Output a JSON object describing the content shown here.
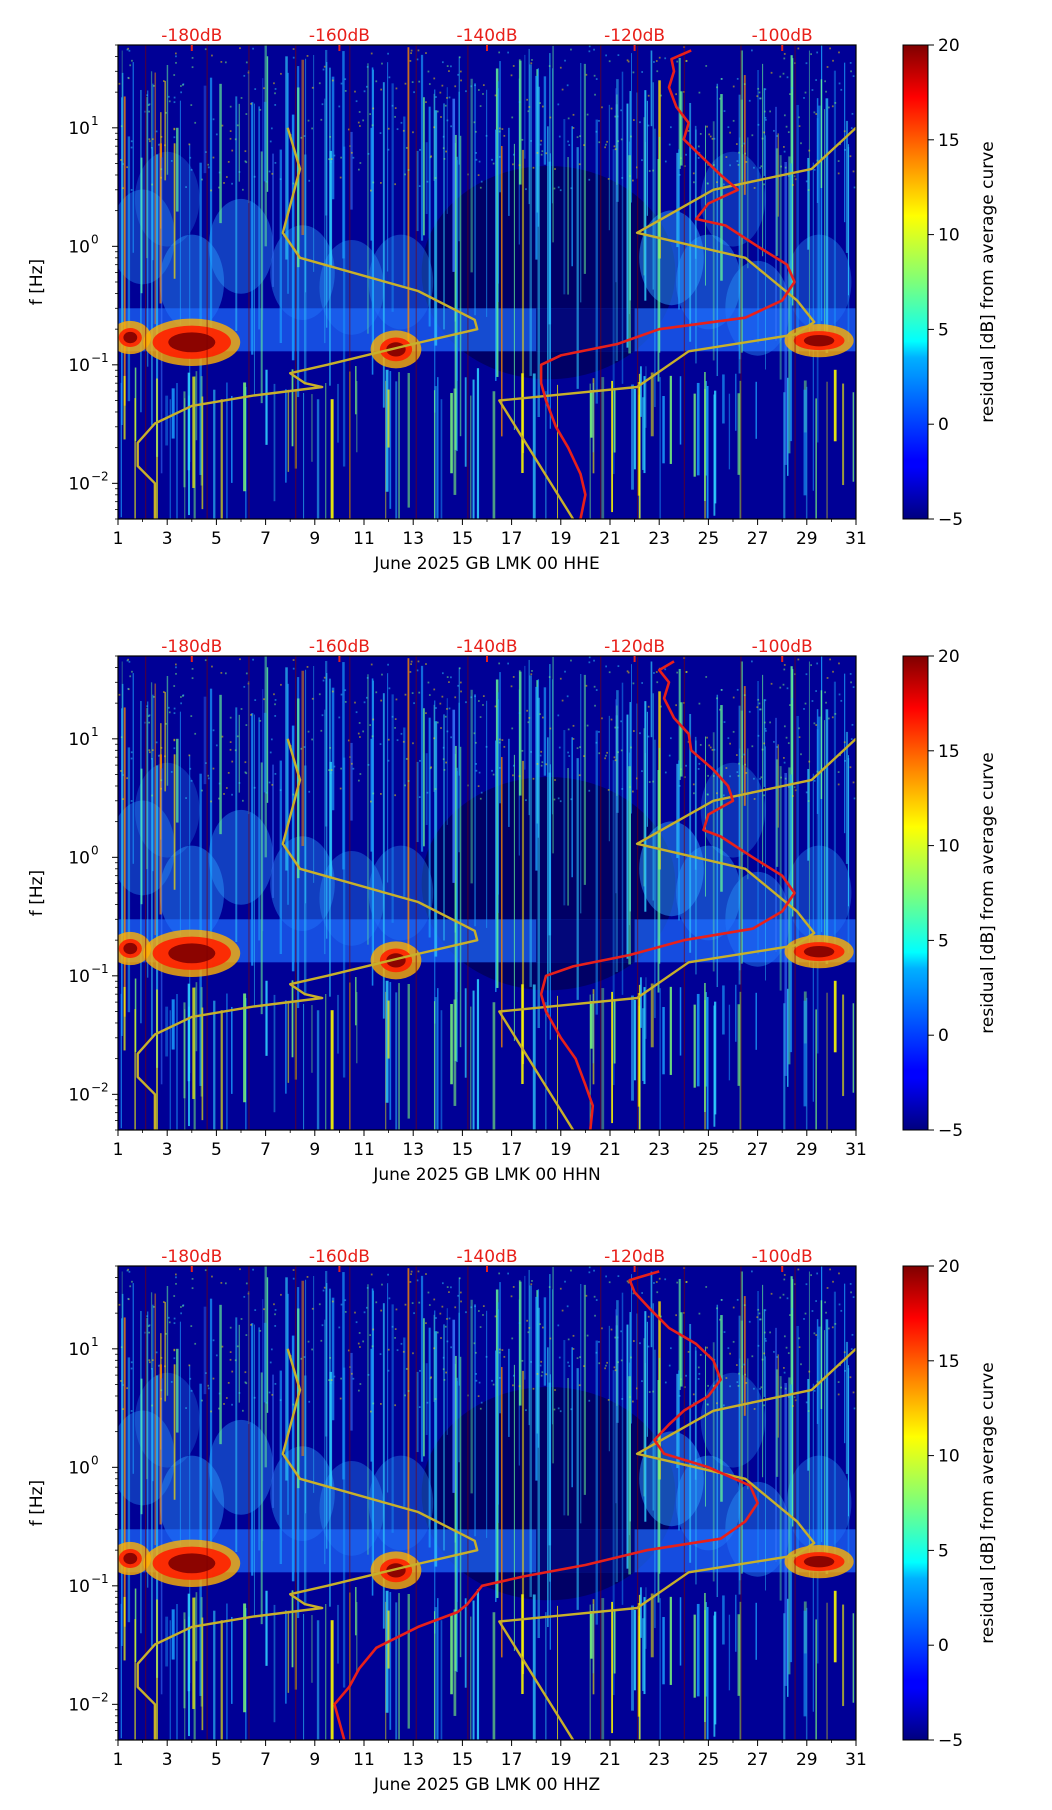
{
  "chart_data": [
    {
      "type": "heatmap",
      "xlabel": "June 2025 GB LMK 00 HHE",
      "ylabel": "f [Hz]",
      "x_ticks": [
        "1",
        "3",
        "5",
        "7",
        "9",
        "11",
        "13",
        "15",
        "17",
        "19",
        "21",
        "23",
        "25",
        "27",
        "29",
        "31"
      ],
      "x_tick_values": [
        1,
        3,
        5,
        7,
        9,
        11,
        13,
        15,
        17,
        19,
        21,
        23,
        25,
        27,
        29,
        31
      ],
      "y_ticks": [
        {
          "label": "10",
          "exp": "1",
          "value": 10
        },
        {
          "label": "10",
          "exp": "0",
          "value": 1
        },
        {
          "label": "10",
          "exp": "−1",
          "value": 0.1
        },
        {
          "label": "10",
          "exp": "−2",
          "value": 0.01
        }
      ],
      "xlim": [
        1,
        31
      ],
      "ylim": [
        0.005,
        50
      ],
      "y_scale": "log",
      "top_axis_labels": [
        "-180dB",
        "-160dB",
        "-140dB",
        "-120dB",
        "-100dB"
      ],
      "top_axis_positions": [
        4,
        10,
        16,
        22,
        28
      ],
      "colorbar": {
        "label": "residual [dB] from average curve",
        "ticks": [
          "20",
          "15",
          "10",
          "5",
          "0",
          "−5"
        ],
        "tick_values": [
          20,
          15,
          10,
          5,
          0,
          -5
        ],
        "range": [
          -5,
          20
        ]
      },
      "series": [
        {
          "color": "#c8b02a",
          "points": [
            [
              7.9,
              10
            ],
            [
              8.4,
              4.5
            ],
            [
              7.7,
              1.3
            ],
            [
              8.4,
              0.8
            ],
            [
              13.2,
              0.42
            ],
            [
              15.5,
              0.24
            ],
            [
              15.6,
              0.2
            ],
            [
              13,
              0.15
            ],
            [
              9.5,
              0.1
            ],
            [
              8.0,
              0.085
            ],
            [
              8.6,
              0.07
            ],
            [
              9.3,
              0.065
            ],
            [
              6.5,
              0.055
            ],
            [
              4.0,
              0.045
            ],
            [
              2.5,
              0.032
            ],
            [
              1.8,
              0.022
            ],
            [
              1.8,
              0.014
            ],
            [
              2.5,
              0.01
            ],
            [
              2.5,
              0.005
            ]
          ]
        },
        {
          "color": "#c8b02a",
          "points": [
            [
              31,
              10
            ],
            [
              29.2,
              4.5
            ],
            [
              25.2,
              3.0
            ],
            [
              22.1,
              1.3
            ],
            [
              26.5,
              0.8
            ],
            [
              28.6,
              0.35
            ],
            [
              29.3,
              0.23
            ],
            [
              28.5,
              0.18
            ],
            [
              24.2,
              0.13
            ],
            [
              22.1,
              0.065
            ],
            [
              16.5,
              0.05
            ],
            [
              19.5,
              0.005
            ]
          ]
        },
        {
          "color": "#e8201a",
          "points": [
            [
              24.3,
              45
            ],
            [
              23.5,
              38
            ],
            [
              23.6,
              30
            ],
            [
              23.4,
              22
            ],
            [
              23.7,
              15
            ],
            [
              24.2,
              11
            ],
            [
              24.0,
              8
            ],
            [
              24.8,
              5.5
            ],
            [
              25.5,
              4
            ],
            [
              26.2,
              3
            ],
            [
              25.0,
              2.3
            ],
            [
              24.5,
              1.7
            ],
            [
              25.7,
              1.5
            ],
            [
              27.0,
              1.0
            ],
            [
              28.2,
              0.7
            ],
            [
              28.5,
              0.5
            ],
            [
              28.0,
              0.35
            ],
            [
              26.5,
              0.25
            ],
            [
              23.0,
              0.2
            ],
            [
              21.3,
              0.15
            ],
            [
              19.0,
              0.12
            ],
            [
              18.2,
              0.1
            ],
            [
              18.2,
              0.07
            ],
            [
              18.4,
              0.05
            ],
            [
              18.8,
              0.03
            ],
            [
              19.3,
              0.02
            ],
            [
              19.8,
              0.012
            ],
            [
              20.0,
              0.008
            ],
            [
              19.8,
              0.005
            ]
          ]
        }
      ]
    },
    {
      "type": "heatmap",
      "xlabel": "June 2025 GB LMK 00 HHN",
      "ylabel": "f [Hz]",
      "x_ticks": [
        "1",
        "3",
        "5",
        "7",
        "9",
        "11",
        "13",
        "15",
        "17",
        "19",
        "21",
        "23",
        "25",
        "27",
        "29",
        "31"
      ],
      "x_tick_values": [
        1,
        3,
        5,
        7,
        9,
        11,
        13,
        15,
        17,
        19,
        21,
        23,
        25,
        27,
        29,
        31
      ],
      "y_ticks": [
        {
          "label": "10",
          "exp": "1",
          "value": 10
        },
        {
          "label": "10",
          "exp": "0",
          "value": 1
        },
        {
          "label": "10",
          "exp": "−1",
          "value": 0.1
        },
        {
          "label": "10",
          "exp": "−2",
          "value": 0.01
        }
      ],
      "xlim": [
        1,
        31
      ],
      "ylim": [
        0.005,
        50
      ],
      "y_scale": "log",
      "top_axis_labels": [
        "-180dB",
        "-160dB",
        "-140dB",
        "-120dB",
        "-100dB"
      ],
      "top_axis_positions": [
        4,
        10,
        16,
        22,
        28
      ],
      "colorbar": {
        "label": "residual [dB] from average curve",
        "ticks": [
          "20",
          "15",
          "10",
          "5",
          "0",
          "−5"
        ],
        "tick_values": [
          20,
          15,
          10,
          5,
          0,
          -5
        ],
        "range": [
          -5,
          20
        ]
      },
      "series": [
        {
          "color": "#c8b02a",
          "points": [
            [
              7.9,
              10
            ],
            [
              8.4,
              4.5
            ],
            [
              7.7,
              1.3
            ],
            [
              8.4,
              0.8
            ],
            [
              13.2,
              0.42
            ],
            [
              15.5,
              0.24
            ],
            [
              15.6,
              0.2
            ],
            [
              13,
              0.15
            ],
            [
              9.5,
              0.1
            ],
            [
              8.0,
              0.085
            ],
            [
              8.6,
              0.07
            ],
            [
              9.3,
              0.065
            ],
            [
              6.5,
              0.055
            ],
            [
              4.0,
              0.045
            ],
            [
              2.5,
              0.032
            ],
            [
              1.8,
              0.022
            ],
            [
              1.8,
              0.014
            ],
            [
              2.5,
              0.01
            ],
            [
              2.5,
              0.005
            ]
          ]
        },
        {
          "color": "#c8b02a",
          "points": [
            [
              31,
              10
            ],
            [
              29.2,
              4.5
            ],
            [
              25.2,
              3.0
            ],
            [
              22.1,
              1.3
            ],
            [
              26.5,
              0.8
            ],
            [
              28.6,
              0.35
            ],
            [
              29.3,
              0.23
            ],
            [
              28.5,
              0.18
            ],
            [
              24.2,
              0.13
            ],
            [
              22.1,
              0.065
            ],
            [
              16.5,
              0.05
            ],
            [
              19.5,
              0.005
            ]
          ]
        },
        {
          "color": "#e8201a",
          "points": [
            [
              23.6,
              45
            ],
            [
              23.0,
              38
            ],
            [
              23.4,
              30
            ],
            [
              23.2,
              22
            ],
            [
              23.6,
              15
            ],
            [
              24.2,
              11
            ],
            [
              24.3,
              8
            ],
            [
              25.2,
              5.5
            ],
            [
              25.8,
              4
            ],
            [
              26.0,
              3
            ],
            [
              25.0,
              2.3
            ],
            [
              24.8,
              1.7
            ],
            [
              25.5,
              1.5
            ],
            [
              26.8,
              1.0
            ],
            [
              28.0,
              0.7
            ],
            [
              28.5,
              0.5
            ],
            [
              28.0,
              0.35
            ],
            [
              26.8,
              0.25
            ],
            [
              24.0,
              0.2
            ],
            [
              21.8,
              0.15
            ],
            [
              19.5,
              0.12
            ],
            [
              18.4,
              0.1
            ],
            [
              18.2,
              0.07
            ],
            [
              18.4,
              0.05
            ],
            [
              19.0,
              0.03
            ],
            [
              19.6,
              0.02
            ],
            [
              20.0,
              0.012
            ],
            [
              20.3,
              0.008
            ],
            [
              20.2,
              0.005
            ]
          ]
        }
      ]
    },
    {
      "type": "heatmap",
      "xlabel": "June 2025 GB LMK 00 HHZ",
      "ylabel": "f [Hz]",
      "x_ticks": [
        "1",
        "3",
        "5",
        "7",
        "9",
        "11",
        "13",
        "15",
        "17",
        "19",
        "21",
        "23",
        "25",
        "27",
        "29",
        "31"
      ],
      "x_tick_values": [
        1,
        3,
        5,
        7,
        9,
        11,
        13,
        15,
        17,
        19,
        21,
        23,
        25,
        27,
        29,
        31
      ],
      "y_ticks": [
        {
          "label": "10",
          "exp": "1",
          "value": 10
        },
        {
          "label": "10",
          "exp": "0",
          "value": 1
        },
        {
          "label": "10",
          "exp": "−1",
          "value": 0.1
        },
        {
          "label": "10",
          "exp": "−2",
          "value": 0.01
        }
      ],
      "xlim": [
        1,
        31
      ],
      "ylim": [
        0.005,
        50
      ],
      "y_scale": "log",
      "top_axis_labels": [
        "-180dB",
        "-160dB",
        "-140dB",
        "-120dB",
        "-100dB"
      ],
      "top_axis_positions": [
        4,
        10,
        16,
        22,
        28
      ],
      "colorbar": {
        "label": "residual [dB] from average curve",
        "ticks": [
          "20",
          "15",
          "10",
          "5",
          "0",
          "−5"
        ],
        "tick_values": [
          20,
          15,
          10,
          5,
          0,
          -5
        ],
        "range": [
          -5,
          20
        ]
      },
      "series": [
        {
          "color": "#c8b02a",
          "points": [
            [
              7.9,
              10
            ],
            [
              8.4,
              4.5
            ],
            [
              7.7,
              1.3
            ],
            [
              8.4,
              0.8
            ],
            [
              13.2,
              0.42
            ],
            [
              15.5,
              0.24
            ],
            [
              15.6,
              0.2
            ],
            [
              13,
              0.15
            ],
            [
              9.5,
              0.1
            ],
            [
              8.0,
              0.085
            ],
            [
              8.6,
              0.07
            ],
            [
              9.3,
              0.065
            ],
            [
              6.5,
              0.055
            ],
            [
              4.0,
              0.045
            ],
            [
              2.5,
              0.032
            ],
            [
              1.8,
              0.022
            ],
            [
              1.8,
              0.014
            ],
            [
              2.5,
              0.01
            ],
            [
              2.5,
              0.005
            ]
          ]
        },
        {
          "color": "#c8b02a",
          "points": [
            [
              31,
              10
            ],
            [
              29.2,
              4.5
            ],
            [
              25.2,
              3.0
            ],
            [
              22.1,
              1.3
            ],
            [
              26.5,
              0.8
            ],
            [
              28.6,
              0.35
            ],
            [
              29.3,
              0.23
            ],
            [
              28.5,
              0.18
            ],
            [
              24.2,
              0.13
            ],
            [
              22.1,
              0.065
            ],
            [
              16.5,
              0.05
            ],
            [
              19.5,
              0.005
            ]
          ]
        },
        {
          "color": "#e8201a",
          "points": [
            [
              23.0,
              45
            ],
            [
              21.8,
              38
            ],
            [
              22.0,
              30
            ],
            [
              22.6,
              22
            ],
            [
              23.4,
              15
            ],
            [
              24.5,
              11
            ],
            [
              25.2,
              8
            ],
            [
              25.5,
              5.5
            ],
            [
              25.0,
              4
            ],
            [
              24.0,
              3
            ],
            [
              23.4,
              2.3
            ],
            [
              22.8,
              1.7
            ],
            [
              23.2,
              1.3
            ],
            [
              25.0,
              1.0
            ],
            [
              26.7,
              0.7
            ],
            [
              27.0,
              0.5
            ],
            [
              26.5,
              0.35
            ],
            [
              25.5,
              0.25
            ],
            [
              22.5,
              0.2
            ],
            [
              20.0,
              0.15
            ],
            [
              17.5,
              0.12
            ],
            [
              15.8,
              0.1
            ],
            [
              15.2,
              0.07
            ],
            [
              14.8,
              0.06
            ],
            [
              13.2,
              0.045
            ],
            [
              11.5,
              0.03
            ],
            [
              10.8,
              0.02
            ],
            [
              10.4,
              0.014
            ],
            [
              9.8,
              0.01
            ],
            [
              10.2,
              0.005
            ]
          ]
        }
      ]
    }
  ],
  "colors": {
    "accent_tick": "#e8201a",
    "yellow_curve": "#c8b02a",
    "red_curve": "#e8201a"
  }
}
